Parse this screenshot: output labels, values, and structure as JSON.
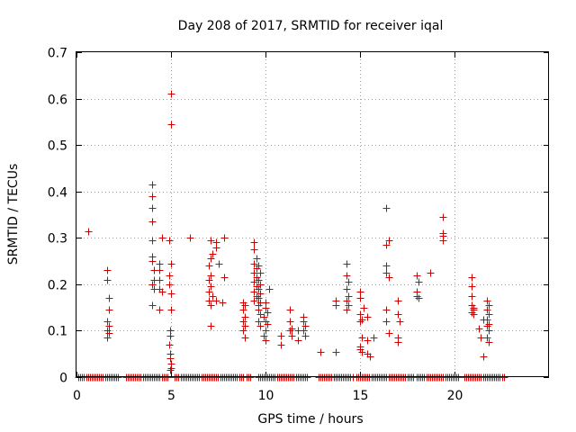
{
  "chart_data": {
    "type": "scatter",
    "title": "Day 208 of 2017, SRMTID for receiver iqal",
    "xlabel": "GPS time / hours",
    "ylabel": "SRMTID / TECUs",
    "xlim": [
      0,
      25
    ],
    "ylim": [
      0,
      0.7
    ],
    "xticks": [
      0,
      5,
      10,
      15,
      20
    ],
    "yticks": [
      0,
      0.1,
      0.2,
      0.3,
      0.4,
      0.5,
      0.6,
      0.7
    ],
    "xtick_labels": [
      "0",
      "5",
      "10",
      "15",
      "20"
    ],
    "ytick_labels": [
      "0",
      "0.1",
      "0.2",
      "0.3",
      "0.4",
      "0.5",
      "0.6",
      "0.7"
    ],
    "grid": true,
    "marker": "+",
    "color": "#d40000",
    "series": [
      {
        "name": "SRMTID",
        "points": [
          [
            0.6,
            0.315
          ],
          [
            1.6,
            0.23
          ],
          [
            1.6,
            0.21
          ],
          [
            1.7,
            0.17
          ],
          [
            1.7,
            0.145
          ],
          [
            1.6,
            0.12
          ],
          [
            1.7,
            0.11
          ],
          [
            1.6,
            0.1
          ],
          [
            1.7,
            0.095
          ],
          [
            1.6,
            0.085
          ],
          [
            4.0,
            0.415
          ],
          [
            4.0,
            0.39
          ],
          [
            4.0,
            0.365
          ],
          [
            4.0,
            0.335
          ],
          [
            4.0,
            0.295
          ],
          [
            4.0,
            0.26
          ],
          [
            4.0,
            0.25
          ],
          [
            4.1,
            0.23
          ],
          [
            4.1,
            0.21
          ],
          [
            4.0,
            0.2
          ],
          [
            4.1,
            0.19
          ],
          [
            4.0,
            0.155
          ],
          [
            4.5,
            0.3
          ],
          [
            4.4,
            0.245
          ],
          [
            4.4,
            0.23
          ],
          [
            4.4,
            0.21
          ],
          [
            4.4,
            0.19
          ],
          [
            4.5,
            0.185
          ],
          [
            4.4,
            0.145
          ],
          [
            5.0,
            0.61
          ],
          [
            5.0,
            0.545
          ],
          [
            4.9,
            0.295
          ],
          [
            5.0,
            0.245
          ],
          [
            4.9,
            0.22
          ],
          [
            4.9,
            0.2
          ],
          [
            5.0,
            0.18
          ],
          [
            5.0,
            0.145
          ],
          [
            4.95,
            0.1
          ],
          [
            4.95,
            0.09
          ],
          [
            4.9,
            0.07
          ],
          [
            4.95,
            0.05
          ],
          [
            4.95,
            0.04
          ],
          [
            5.0,
            0.03
          ],
          [
            5.0,
            0.02
          ],
          [
            4.95,
            0.015
          ],
          [
            6.0,
            0.3
          ],
          [
            7.1,
            0.295
          ],
          [
            7.2,
            0.265
          ],
          [
            7.1,
            0.255
          ],
          [
            7.0,
            0.24
          ],
          [
            7.1,
            0.22
          ],
          [
            7.0,
            0.21
          ],
          [
            7.1,
            0.195
          ],
          [
            7.0,
            0.185
          ],
          [
            7.2,
            0.175
          ],
          [
            7.0,
            0.165
          ],
          [
            7.1,
            0.155
          ],
          [
            7.1,
            0.11
          ],
          [
            7.4,
            0.29
          ],
          [
            7.4,
            0.28
          ],
          [
            7.5,
            0.245
          ],
          [
            7.4,
            0.165
          ],
          [
            7.8,
            0.3
          ],
          [
            7.8,
            0.215
          ],
          [
            7.7,
            0.16
          ],
          [
            8.8,
            0.16
          ],
          [
            8.9,
            0.155
          ],
          [
            8.8,
            0.145
          ],
          [
            8.9,
            0.13
          ],
          [
            8.8,
            0.12
          ],
          [
            8.9,
            0.11
          ],
          [
            8.8,
            0.1
          ],
          [
            8.9,
            0.085
          ],
          [
            9.4,
            0.29
          ],
          [
            9.4,
            0.275
          ],
          [
            9.5,
            0.255
          ],
          [
            9.4,
            0.245
          ],
          [
            9.5,
            0.235
          ],
          [
            9.4,
            0.225
          ],
          [
            9.5,
            0.215
          ],
          [
            9.4,
            0.205
          ],
          [
            9.5,
            0.195
          ],
          [
            9.4,
            0.185
          ],
          [
            9.5,
            0.175
          ],
          [
            9.4,
            0.165
          ],
          [
            9.6,
            0.155
          ],
          [
            9.6,
            0.24
          ],
          [
            9.7,
            0.225
          ],
          [
            9.6,
            0.21
          ],
          [
            9.7,
            0.2
          ],
          [
            9.6,
            0.19
          ],
          [
            9.7,
            0.18
          ],
          [
            9.6,
            0.17
          ],
          [
            9.7,
            0.16
          ],
          [
            9.6,
            0.145
          ],
          [
            9.7,
            0.135
          ],
          [
            9.6,
            0.12
          ],
          [
            9.7,
            0.11
          ],
          [
            10.0,
            0.16
          ],
          [
            10.0,
            0.15
          ],
          [
            10.1,
            0.14
          ],
          [
            9.9,
            0.13
          ],
          [
            10.0,
            0.12
          ],
          [
            10.2,
            0.19
          ],
          [
            10.1,
            0.115
          ],
          [
            10.0,
            0.1
          ],
          [
            9.9,
            0.09
          ],
          [
            10.0,
            0.08
          ],
          [
            10.8,
            0.09
          ],
          [
            10.8,
            0.07
          ],
          [
            11.3,
            0.145
          ],
          [
            11.3,
            0.12
          ],
          [
            11.4,
            0.105
          ],
          [
            11.3,
            0.1
          ],
          [
            11.4,
            0.09
          ],
          [
            11.7,
            0.1
          ],
          [
            11.7,
            0.08
          ],
          [
            12.0,
            0.13
          ],
          [
            12.0,
            0.12
          ],
          [
            12.1,
            0.11
          ],
          [
            12.0,
            0.1
          ],
          [
            12.1,
            0.09
          ],
          [
            12.9,
            0.055
          ],
          [
            13.7,
            0.165
          ],
          [
            13.7,
            0.155
          ],
          [
            13.7,
            0.055
          ],
          [
            14.3,
            0.245
          ],
          [
            14.3,
            0.22
          ],
          [
            14.4,
            0.205
          ],
          [
            14.3,
            0.19
          ],
          [
            14.4,
            0.175
          ],
          [
            14.3,
            0.165
          ],
          [
            14.4,
            0.155
          ],
          [
            14.3,
            0.145
          ],
          [
            15.0,
            0.185
          ],
          [
            15.0,
            0.17
          ],
          [
            15.0,
            0.135
          ],
          [
            15.1,
            0.125
          ],
          [
            15.0,
            0.12
          ],
          [
            15.2,
            0.15
          ],
          [
            15.1,
            0.085
          ],
          [
            15.0,
            0.065
          ],
          [
            15.1,
            0.055
          ],
          [
            15.0,
            0.06
          ],
          [
            15.4,
            0.13
          ],
          [
            15.4,
            0.08
          ],
          [
            15.4,
            0.05
          ],
          [
            15.5,
            0.045
          ],
          [
            15.7,
            0.085
          ],
          [
            16.4,
            0.365
          ],
          [
            16.5,
            0.295
          ],
          [
            16.4,
            0.285
          ],
          [
            16.4,
            0.24
          ],
          [
            16.4,
            0.225
          ],
          [
            16.5,
            0.215
          ],
          [
            16.4,
            0.145
          ],
          [
            16.4,
            0.12
          ],
          [
            16.5,
            0.095
          ],
          [
            17.0,
            0.165
          ],
          [
            17.0,
            0.135
          ],
          [
            17.1,
            0.12
          ],
          [
            17.0,
            0.085
          ],
          [
            17.0,
            0.075
          ],
          [
            18.0,
            0.22
          ],
          [
            18.1,
            0.205
          ],
          [
            18.0,
            0.185
          ],
          [
            18.0,
            0.175
          ],
          [
            18.1,
            0.17
          ],
          [
            18.7,
            0.225
          ],
          [
            19.4,
            0.345
          ],
          [
            19.4,
            0.31
          ],
          [
            19.4,
            0.305
          ],
          [
            19.4,
            0.295
          ],
          [
            20.9,
            0.215
          ],
          [
            20.9,
            0.195
          ],
          [
            20.9,
            0.175
          ],
          [
            20.9,
            0.155
          ],
          [
            21.0,
            0.145
          ],
          [
            20.9,
            0.14
          ],
          [
            21.0,
            0.135
          ],
          [
            21.0,
            0.15
          ],
          [
            21.3,
            0.105
          ],
          [
            21.4,
            0.085
          ],
          [
            21.5,
            0.125
          ],
          [
            21.5,
            0.045
          ],
          [
            21.7,
            0.165
          ],
          [
            21.8,
            0.155
          ],
          [
            21.7,
            0.145
          ],
          [
            21.8,
            0.135
          ],
          [
            21.7,
            0.125
          ],
          [
            21.8,
            0.115
          ],
          [
            21.7,
            0.11
          ],
          [
            21.8,
            0.1
          ],
          [
            21.7,
            0.085
          ],
          [
            21.8,
            0.075
          ]
        ],
        "baseline_zero_ranges": [
          [
            0.1,
            2.2
          ],
          [
            2.6,
            4.8
          ],
          [
            5.2,
            8.8
          ],
          [
            9.0,
            9.2
          ],
          [
            9.6,
            12.2
          ],
          [
            12.8,
            14.6
          ],
          [
            14.8,
            17.8
          ],
          [
            18.0,
            20.2
          ],
          [
            20.5,
            22.6
          ]
        ],
        "baseline_zero_step": 0.1
      }
    ]
  }
}
